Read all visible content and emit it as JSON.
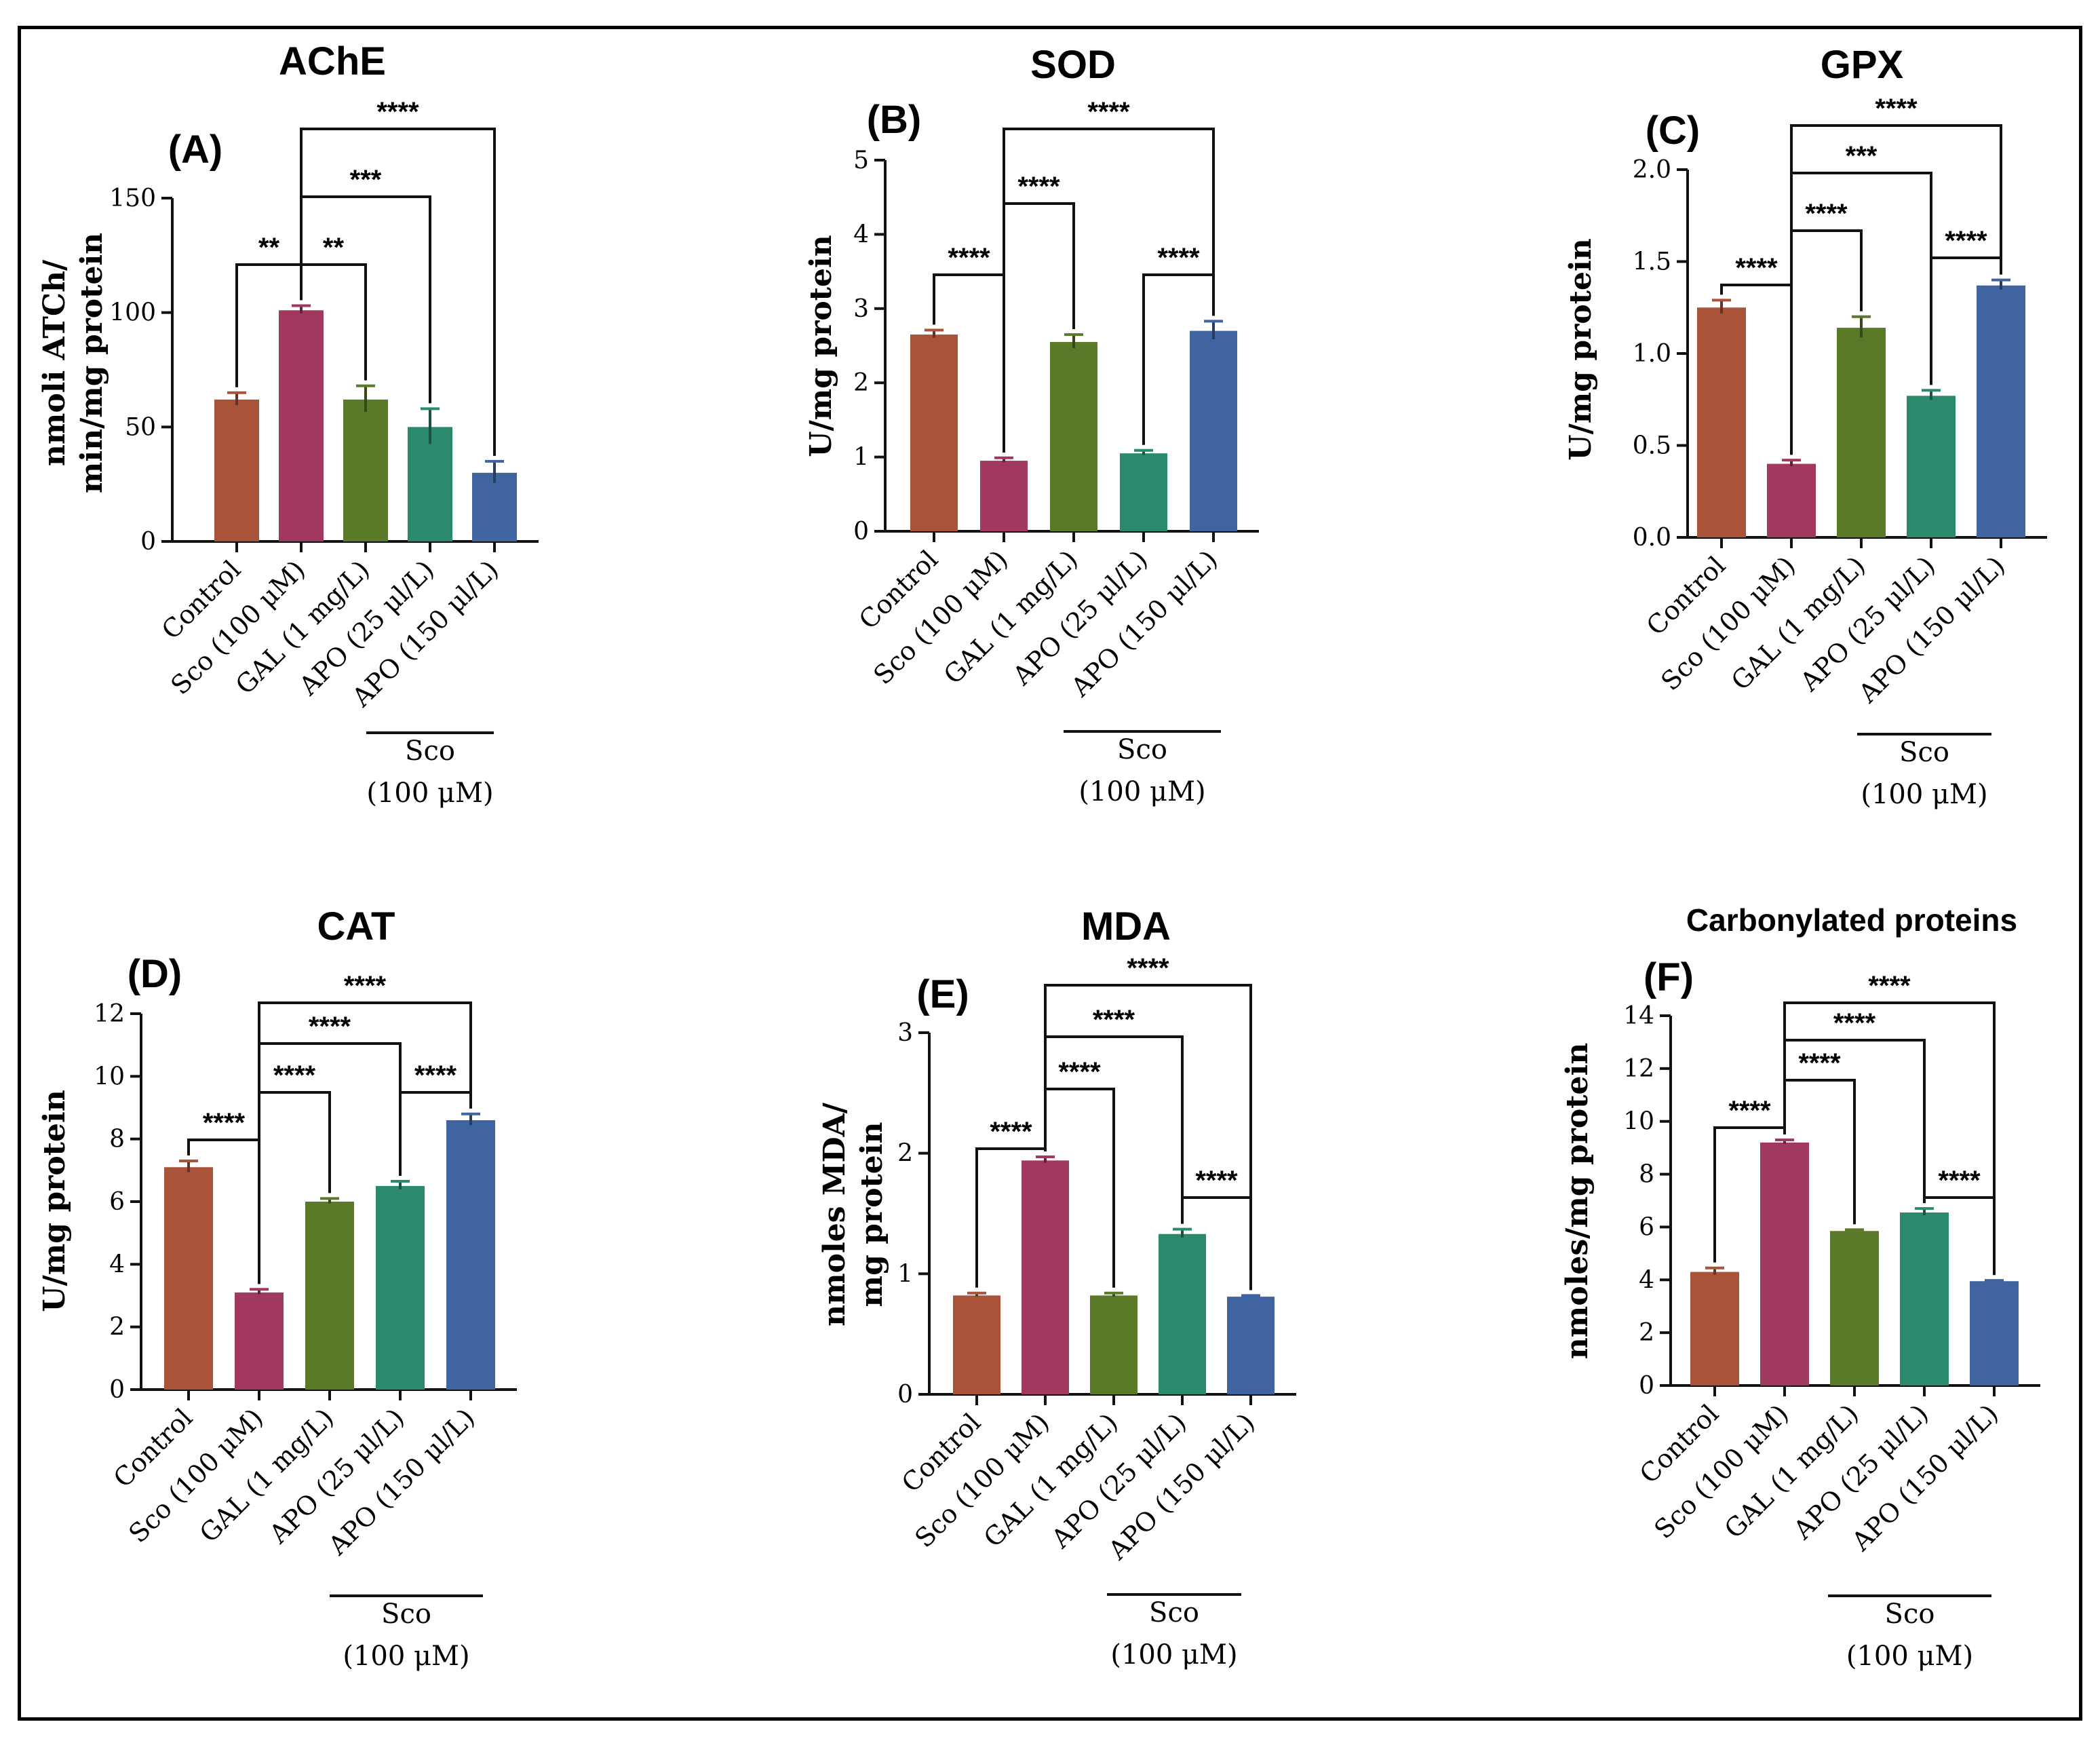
{
  "figure": {
    "group_label": "Sco",
    "group_sub": "(100 μM)"
  },
  "chart_data": [
    {
      "type": "bar",
      "letter": "(A)",
      "title": "AChE",
      "ylabel_lines": [
        "nmoli ATCh/",
        "min/mg protein"
      ],
      "ylim": [
        0,
        150
      ],
      "yticks": [
        "0",
        "50",
        "100",
        "150"
      ],
      "categories": [
        "Control",
        "Sco (100 μM)",
        "GAL (1 mg/L)",
        "APO (25 μl/L)",
        "APO (150 μl/L)"
      ],
      "values": [
        62,
        101,
        62,
        50,
        30
      ],
      "errors": [
        3,
        2,
        6,
        8,
        5
      ],
      "colors": [
        "#A9533A",
        "#A0385F",
        "#5A7A2A",
        "#2B8A6D",
        "#3F64A0"
      ],
      "significance": [
        {
          "from": 0,
          "to": 1,
          "label": "**"
        },
        {
          "from": 1,
          "to": 2,
          "label": "**"
        },
        {
          "from": 1,
          "to": 3,
          "label": "***"
        },
        {
          "from": 1,
          "to": 4,
          "label": "****"
        }
      ]
    },
    {
      "type": "bar",
      "letter": "(B)",
      "title": "SOD",
      "ylabel_lines": [
        "U/mg protein"
      ],
      "ylim": [
        0,
        5
      ],
      "yticks": [
        "0",
        "1",
        "2",
        "3",
        "4",
        "5"
      ],
      "categories": [
        "Control",
        "Sco (100 μM)",
        "GAL (1 mg/L)",
        "APO (25 μl/L)",
        "APO (150 μl/L)"
      ],
      "values": [
        2.65,
        0.95,
        2.55,
        1.05,
        2.7
      ],
      "errors": [
        0.06,
        0.04,
        0.1,
        0.04,
        0.13
      ],
      "colors": [
        "#A9533A",
        "#A0385F",
        "#5A7A2A",
        "#2B8A6D",
        "#3F64A0"
      ],
      "significance": [
        {
          "from": 0,
          "to": 1,
          "label": "****"
        },
        {
          "from": 1,
          "to": 2,
          "label": "****"
        },
        {
          "from": 3,
          "to": 4,
          "label": "****"
        },
        {
          "from": 1,
          "to": 4,
          "label": "****"
        }
      ]
    },
    {
      "type": "bar",
      "letter": "(C)",
      "title": "GPX",
      "ylabel_lines": [
        "U/mg protein"
      ],
      "ylim": [
        0,
        2.0
      ],
      "yticks": [
        "0.0",
        "0.5",
        "1.0",
        "1.5",
        "2.0"
      ],
      "categories": [
        "Control",
        "Sco (100 μM)",
        "GAL (1 mg/L)",
        "APO (25 μl/L)",
        "APO (150 μl/L)"
      ],
      "values": [
        1.25,
        0.4,
        1.14,
        0.77,
        1.37
      ],
      "errors": [
        0.04,
        0.02,
        0.06,
        0.03,
        0.03
      ],
      "colors": [
        "#A9533A",
        "#A0385F",
        "#5A7A2A",
        "#2B8A6D",
        "#3F64A0"
      ],
      "significance": [
        {
          "from": 0,
          "to": 1,
          "label": "****"
        },
        {
          "from": 1,
          "to": 2,
          "label": "****"
        },
        {
          "from": 3,
          "to": 4,
          "label": "****"
        },
        {
          "from": 1,
          "to": 3,
          "label": "***"
        },
        {
          "from": 1,
          "to": 4,
          "label": "****"
        }
      ]
    },
    {
      "type": "bar",
      "letter": "(D)",
      "title": "CAT",
      "ylabel_lines": [
        "U/mg protein"
      ],
      "ylim": [
        0,
        12
      ],
      "yticks": [
        "0",
        "2",
        "4",
        "6",
        "8",
        "10",
        "12"
      ],
      "categories": [
        "Control",
        "Sco (100 μM)",
        "GAL (1 mg/L)",
        "APO (25 μl/L)",
        "APO (150 μl/L)"
      ],
      "values": [
        7.1,
        3.1,
        6.0,
        6.5,
        8.6
      ],
      "errors": [
        0.2,
        0.1,
        0.1,
        0.15,
        0.2
      ],
      "colors": [
        "#A9533A",
        "#A0385F",
        "#5A7A2A",
        "#2B8A6D",
        "#3F64A0"
      ],
      "significance": [
        {
          "from": 0,
          "to": 1,
          "label": "****"
        },
        {
          "from": 1,
          "to": 2,
          "label": "****"
        },
        {
          "from": 3,
          "to": 4,
          "label": "****"
        },
        {
          "from": 1,
          "to": 3,
          "label": "****"
        },
        {
          "from": 1,
          "to": 4,
          "label": "****"
        }
      ]
    },
    {
      "type": "bar",
      "letter": "(E)",
      "title": "MDA",
      "ylabel_lines": [
        "nmoles MDA/",
        "mg protein"
      ],
      "ylim": [
        0,
        3
      ],
      "yticks": [
        "0",
        "1",
        "2",
        "3"
      ],
      "categories": [
        "Control",
        "Sco (100 μM)",
        "GAL (1 mg/L)",
        "APO (25 μl/L)",
        "APO (150 μl/L)"
      ],
      "values": [
        0.82,
        1.94,
        0.82,
        1.33,
        0.81
      ],
      "errors": [
        0.02,
        0.03,
        0.02,
        0.04,
        0.01
      ],
      "colors": [
        "#A9533A",
        "#A0385F",
        "#5A7A2A",
        "#2B8A6D",
        "#3F64A0"
      ],
      "significance": [
        {
          "from": 0,
          "to": 1,
          "label": "****"
        },
        {
          "from": 1,
          "to": 2,
          "label": "****"
        },
        {
          "from": 3,
          "to": 4,
          "label": "****"
        },
        {
          "from": 1,
          "to": 3,
          "label": "****"
        },
        {
          "from": 1,
          "to": 4,
          "label": "****"
        }
      ]
    },
    {
      "type": "bar",
      "letter": "(F)",
      "title": "Carbonylated proteins",
      "ylabel_lines": [
        "nmoles/mg protein"
      ],
      "ylim": [
        0,
        14
      ],
      "yticks": [
        "0",
        "2",
        "4",
        "6",
        "8",
        "10",
        "12",
        "14"
      ],
      "categories": [
        "Control",
        "Sco (100 μM)",
        "GAL (1 mg/L)",
        "APO (25 μl/L)",
        "APO (150 μl/L)"
      ],
      "values": [
        4.3,
        9.2,
        5.85,
        6.55,
        3.95
      ],
      "errors": [
        0.15,
        0.1,
        0.05,
        0.15,
        0.03
      ],
      "colors": [
        "#A9533A",
        "#A0385F",
        "#5A7A2A",
        "#2B8A6D",
        "#3F64A0"
      ],
      "significance": [
        {
          "from": 0,
          "to": 1,
          "label": "****"
        },
        {
          "from": 1,
          "to": 2,
          "label": "****"
        },
        {
          "from": 3,
          "to": 4,
          "label": "****"
        },
        {
          "from": 1,
          "to": 3,
          "label": "****"
        },
        {
          "from": 1,
          "to": 4,
          "label": "****"
        }
      ]
    }
  ]
}
